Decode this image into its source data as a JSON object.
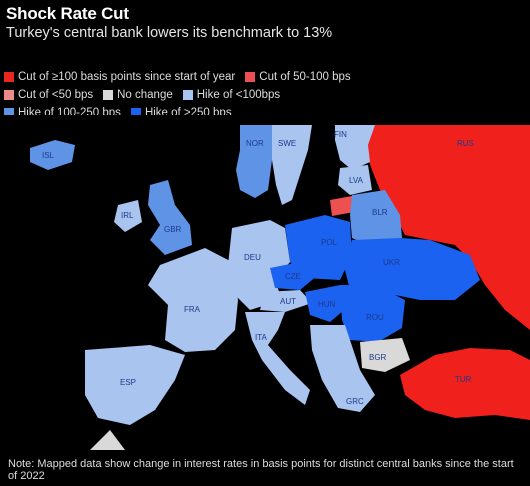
{
  "header": {
    "title": "Shock Rate Cut",
    "subtitle": "Turkey's central bank lowers its benchmark to 13%"
  },
  "legend": {
    "row1": [
      {
        "label": "Cut of ≥100 basis points since start of year",
        "color": "#e8281f"
      },
      {
        "label": "Cut of 50-100 bps",
        "color": "#ec5050"
      }
    ],
    "row2": [
      {
        "label": "Cut of <50 bps",
        "color": "#ec8a8a"
      },
      {
        "label": "No change",
        "color": "#d9d9d9"
      },
      {
        "label": "Hike of <100bps",
        "color": "#a9c4ef"
      }
    ],
    "row3": [
      {
        "label": "Hike of 100-250 bps",
        "color": "#5f93e6"
      },
      {
        "label": "Hike of >250 bps",
        "color": "#1b62f0"
      }
    ]
  },
  "colors": {
    "cut_ge100": "#e8281f",
    "cut_50_100": "#ec5050",
    "no_change": "#d9d9d9",
    "hike_lt100": "#a9c4ef",
    "hike_100_250": "#5f93e6",
    "hike_gt250": "#1b62f0",
    "sea": "#000000"
  },
  "countries": {
    "ISL": "ISL",
    "NOR": "NOR",
    "SWE": "SWE",
    "FIN": "FIN",
    "RUS": "RUS",
    "LVA": "LVA",
    "IRL": "IRL",
    "GBR": "GBR",
    "BLR": "BLR",
    "POL": "POL",
    "DEU": "DEU",
    "UKR": "UKR",
    "CZE": "CZE",
    "FRA": "FRA",
    "AUT": "AUT",
    "HUN": "HUN",
    "ROU": "ROU",
    "ITA": "ITA",
    "BGR": "BGR",
    "ESP": "ESP",
    "TUR": "TUR",
    "GRC": "GRC"
  },
  "note": "Note: Mapped data show change in interest rates in basis points for distinct central banks since the start of 2022"
}
